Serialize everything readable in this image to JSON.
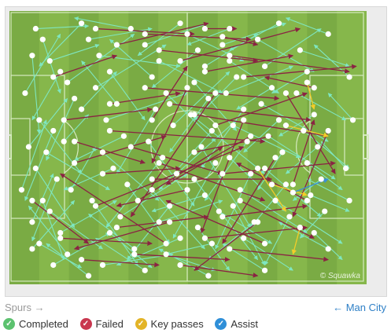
{
  "chart_data": {
    "type": "scatter",
    "title": "",
    "xlabel": "",
    "ylabel": "",
    "xlim": [
      0,
      100
    ],
    "ylim": [
      0,
      100
    ],
    "grid": false,
    "pitch": {
      "stripe_light": "#86b74b",
      "stripe_dark": "#7aab44",
      "line": "#d6eac0"
    },
    "watermark": "© Squawka",
    "series": [
      {
        "name": "Completed",
        "color": "#7fe6c0",
        "passes": [
          [
            7,
            6,
            22,
            5
          ],
          [
            9,
            10,
            14,
            30
          ],
          [
            6,
            16,
            8,
            45
          ],
          [
            11,
            18,
            25,
            12
          ],
          [
            14,
            22,
            6,
            40
          ],
          [
            16,
            26,
            35,
            8
          ],
          [
            18,
            32,
            10,
            55
          ],
          [
            20,
            36,
            30,
            22
          ],
          [
            8,
            40,
            20,
            60
          ],
          [
            12,
            44,
            4,
            70
          ],
          [
            15,
            48,
            22,
            38
          ],
          [
            10,
            52,
            28,
            66
          ],
          [
            7,
            58,
            18,
            80
          ],
          [
            13,
            62,
            6,
            85
          ],
          [
            17,
            66,
            24,
            50
          ],
          [
            9,
            70,
            15,
            92
          ],
          [
            11,
            74,
            26,
            88
          ],
          [
            6,
            78,
            12,
            60
          ],
          [
            14,
            82,
            30,
            70
          ],
          [
            8,
            86,
            20,
            95
          ],
          [
            16,
            90,
            5,
            72
          ],
          [
            12,
            94,
            28,
            82
          ],
          [
            22,
            10,
            40,
            6
          ],
          [
            25,
            16,
            48,
            20
          ],
          [
            28,
            22,
            38,
            40
          ],
          [
            24,
            28,
            44,
            12
          ],
          [
            30,
            34,
            20,
            18
          ],
          [
            27,
            40,
            50,
            30
          ],
          [
            32,
            46,
            18,
            55
          ],
          [
            26,
            52,
            42,
            70
          ],
          [
            29,
            58,
            15,
            66
          ],
          [
            33,
            64,
            45,
            86
          ],
          [
            23,
            70,
            36,
            94
          ],
          [
            31,
            76,
            50,
            60
          ],
          [
            28,
            82,
            40,
            95
          ],
          [
            35,
            88,
            22,
            75
          ],
          [
            26,
            94,
            46,
            90
          ],
          [
            38,
            12,
            56,
            4
          ],
          [
            42,
            18,
            60,
            30
          ],
          [
            40,
            24,
            28,
            10
          ],
          [
            44,
            30,
            58,
            48
          ],
          [
            41,
            36,
            30,
            60
          ],
          [
            46,
            42,
            62,
            22
          ],
          [
            39,
            48,
            52,
            72
          ],
          [
            43,
            54,
            27,
            80
          ],
          [
            47,
            60,
            64,
            40
          ],
          [
            40,
            66,
            55,
            88
          ],
          [
            45,
            72,
            33,
            92
          ],
          [
            42,
            78,
            60,
            70
          ],
          [
            48,
            84,
            30,
            94
          ],
          [
            44,
            90,
            58,
            96
          ],
          [
            50,
            8,
            66,
            18
          ],
          [
            53,
            14,
            40,
            28
          ],
          [
            55,
            20,
            70,
            8
          ],
          [
            52,
            26,
            64,
            44
          ],
          [
            56,
            32,
            45,
            52
          ],
          [
            51,
            38,
            72,
            60
          ],
          [
            57,
            44,
            42,
            66
          ],
          [
            54,
            50,
            68,
            80
          ],
          [
            58,
            56,
            46,
            84
          ],
          [
            52,
            62,
            70,
            92
          ],
          [
            55,
            68,
            40,
            74
          ],
          [
            59,
            74,
            74,
            86
          ],
          [
            53,
            80,
            62,
            96
          ],
          [
            57,
            86,
            44,
            90
          ],
          [
            60,
            12,
            78,
            4
          ],
          [
            62,
            18,
            76,
            30
          ],
          [
            64,
            24,
            52,
            40
          ],
          [
            61,
            30,
            80,
            20
          ],
          [
            66,
            36,
            54,
            58
          ],
          [
            63,
            42,
            82,
            54
          ],
          [
            67,
            48,
            55,
            70
          ],
          [
            62,
            54,
            78,
            74
          ],
          [
            68,
            60,
            58,
            88
          ],
          [
            65,
            66,
            84,
            82
          ],
          [
            63,
            72,
            72,
            94
          ],
          [
            69,
            78,
            56,
            92
          ],
          [
            66,
            84,
            80,
            96
          ],
          [
            70,
            10,
            86,
            22
          ],
          [
            72,
            20,
            88,
            6
          ],
          [
            74,
            28,
            64,
            36
          ],
          [
            71,
            34,
            90,
            48
          ],
          [
            76,
            40,
            66,
            52
          ],
          [
            73,
            46,
            92,
            62
          ],
          [
            77,
            52,
            70,
            66
          ],
          [
            72,
            58,
            88,
            76
          ],
          [
            78,
            64,
            68,
            80
          ],
          [
            75,
            70,
            94,
            86
          ],
          [
            79,
            76,
            72,
            94
          ],
          [
            82,
            14,
            96,
            20
          ],
          [
            84,
            22,
            74,
            30
          ],
          [
            81,
            30,
            95,
            40
          ],
          [
            86,
            38,
            76,
            46
          ],
          [
            83,
            44,
            96,
            58
          ],
          [
            87,
            50,
            78,
            60
          ],
          [
            84,
            56,
            94,
            66
          ],
          [
            88,
            62,
            80,
            70
          ],
          [
            85,
            68,
            96,
            74
          ],
          [
            89,
            74,
            82,
            84
          ],
          [
            86,
            82,
            94,
            92
          ],
          [
            4,
            30,
            14,
            8
          ],
          [
            5,
            50,
            16,
            32
          ],
          [
            3,
            66,
            10,
            40
          ],
          [
            6,
            88,
            18,
            70
          ],
          [
            20,
            4,
            8,
            20
          ],
          [
            34,
            6,
            18,
            2
          ],
          [
            48,
            4,
            36,
            16
          ],
          [
            62,
            6,
            50,
            12
          ],
          [
            76,
            4,
            62,
            14
          ],
          [
            90,
            8,
            78,
            2
          ],
          [
            96,
            24,
            86,
            12
          ],
          [
            97,
            40,
            90,
            30
          ],
          [
            95,
            58,
            88,
            48
          ],
          [
            96,
            70,
            84,
            62
          ],
          [
            90,
            88,
            76,
            78
          ],
          [
            72,
            96,
            60,
            86
          ],
          [
            56,
            98,
            42,
            88
          ],
          [
            38,
            96,
            24,
            84
          ],
          [
            22,
            98,
            10,
            86
          ]
        ]
      },
      {
        "name": "Failed",
        "color": "#8a2343",
        "passes": [
          [
            24,
            6,
            52,
            8
          ],
          [
            38,
            8,
            68,
            10
          ],
          [
            55,
            6,
            64,
            6
          ],
          [
            60,
            9,
            70,
            12
          ],
          [
            30,
            12,
            56,
            4
          ],
          [
            42,
            14,
            70,
            18
          ],
          [
            48,
            18,
            82,
            6
          ],
          [
            55,
            22,
            80,
            16
          ],
          [
            62,
            16,
            96,
            22
          ],
          [
            66,
            24,
            98,
            20
          ],
          [
            38,
            28,
            76,
            32
          ],
          [
            45,
            34,
            85,
            40
          ],
          [
            52,
            38,
            90,
            46
          ],
          [
            15,
            40,
            40,
            36
          ],
          [
            28,
            44,
            72,
            48
          ],
          [
            58,
            42,
            84,
            30
          ],
          [
            34,
            50,
            60,
            60
          ],
          [
            18,
            56,
            44,
            46
          ],
          [
            26,
            60,
            48,
            58
          ],
          [
            40,
            62,
            74,
            62
          ],
          [
            50,
            66,
            30,
            72
          ],
          [
            60,
            60,
            92,
            56
          ],
          [
            65,
            70,
            86,
            84
          ],
          [
            45,
            78,
            18,
            88
          ],
          [
            30,
            80,
            56,
            76
          ],
          [
            14,
            84,
            40,
            86
          ],
          [
            55,
            84,
            84,
            80
          ],
          [
            20,
            92,
            42,
            94
          ],
          [
            35,
            90,
            62,
            92
          ],
          [
            48,
            94,
            70,
            98
          ],
          [
            62,
            88,
            90,
            92
          ],
          [
            70,
            78,
            52,
            96
          ],
          [
            75,
            54,
            60,
            86
          ],
          [
            68,
            46,
            44,
            64
          ],
          [
            80,
            64,
            86,
            40
          ],
          [
            78,
            30,
            92,
            60
          ],
          [
            72,
            86,
            44,
            70
          ],
          [
            44,
            86,
            14,
            60
          ],
          [
            12,
            24,
            30,
            16
          ],
          [
            6,
            70,
            22,
            86
          ],
          [
            86,
            28,
            72,
            24
          ],
          [
            90,
            44,
            80,
            76
          ],
          [
            58,
            30,
            34,
            76
          ],
          [
            24,
            72,
            66,
            50
          ],
          [
            40,
            40,
            50,
            20
          ],
          [
            36,
            70,
            60,
            50
          ],
          [
            52,
            52,
            74,
            46
          ],
          [
            28,
            34,
            48,
            30
          ],
          [
            66,
            40,
            54,
            82
          ],
          [
            84,
            70,
            64,
            56
          ],
          [
            18,
            48,
            38,
            56
          ],
          [
            60,
            76,
            84,
            72
          ],
          [
            42,
            56,
            72,
            70
          ],
          [
            50,
            28,
            40,
            56
          ]
        ]
      },
      {
        "name": "Key passes",
        "color": "#f3cd29",
        "passes": [
          [
            78,
            42,
            90,
            46
          ],
          [
            84,
            26,
            86,
            36
          ],
          [
            74,
            64,
            84,
            68
          ],
          [
            82,
            80,
            80,
            90
          ],
          [
            70,
            58,
            78,
            74
          ]
        ]
      },
      {
        "name": "Assist",
        "color": "#3a8fd6",
        "passes": [
          [
            80,
            67,
            90,
            62
          ]
        ]
      }
    ]
  },
  "footer": {
    "home_team": "Spurs",
    "home_arrow": "→",
    "away_team": "Man City",
    "away_arrow": "←"
  },
  "legend": [
    {
      "label": "Completed",
      "color": "#5cc26f",
      "icon": "check-icon"
    },
    {
      "label": "Failed",
      "color": "#c9374f",
      "icon": "check-icon"
    },
    {
      "label": "Key passes",
      "color": "#e3b427",
      "icon": "check-icon"
    },
    {
      "label": "Assist",
      "color": "#2f8fd8",
      "icon": "check-icon"
    }
  ]
}
